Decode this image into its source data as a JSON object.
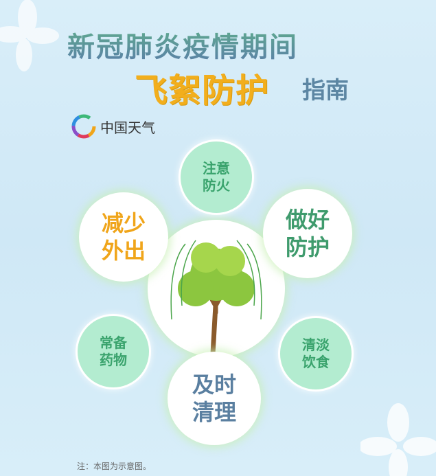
{
  "header": {
    "title_line1": "新冠肺炎疫情期间",
    "title_highlight": "飞絮防护",
    "title_suffix": "指南"
  },
  "brand": {
    "name": "中国天气",
    "icon": "weather-swirl-logo-icon"
  },
  "tips": [
    {
      "line1": "注意",
      "line2": "防火",
      "color": "#3aa36d"
    },
    {
      "line1": "做好",
      "line2": "防护",
      "color": "#3f9b6d"
    },
    {
      "line1": "减少",
      "line2": "外出",
      "color": "#f0a51a"
    },
    {
      "line1": "常备",
      "line2": "药物",
      "color": "#3aa36d"
    },
    {
      "line1": "清淡",
      "line2": "饮食",
      "color": "#3aa36d"
    },
    {
      "line1": "及时",
      "line2": "清理",
      "color": "#5a7fa0"
    }
  ],
  "center": {
    "icon": "willow-tree-icon"
  },
  "footer": {
    "note": "注：本图为示意图。"
  }
}
